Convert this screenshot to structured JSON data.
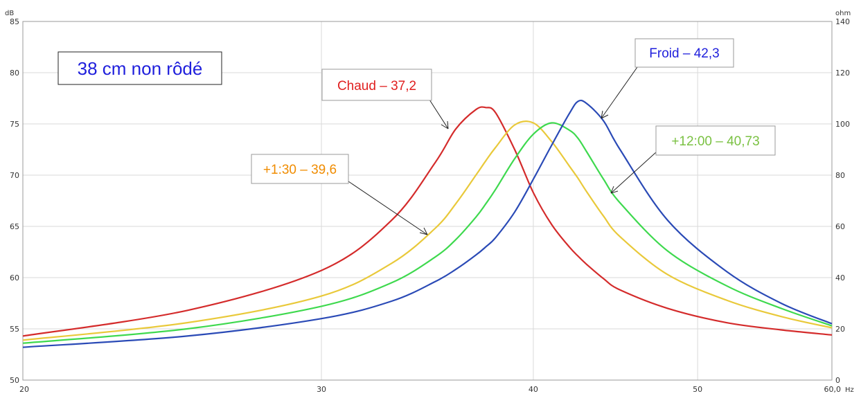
{
  "chart_data": {
    "type": "line",
    "xlabel": "",
    "x_unit": "Hz",
    "x_scale": "log",
    "xlim": [
      20,
      60
    ],
    "x_tick_labels": [
      "20",
      "30",
      "40",
      "50",
      "60,0"
    ],
    "x_tick_values": [
      20,
      30,
      40,
      50,
      60
    ],
    "left_axis": {
      "unit": "dB",
      "ylim": [
        50,
        85
      ],
      "ticks": [
        "50",
        "55",
        "60",
        "65",
        "70",
        "75",
        "80",
        "85"
      ]
    },
    "right_axis": {
      "unit": "ohm",
      "ylim": [
        0,
        140
      ],
      "ticks": [
        "0",
        "20",
        "40",
        "60",
        "80",
        "100",
        "120",
        "140"
      ]
    },
    "grid": true,
    "x": [
      20,
      25,
      30,
      33,
      35,
      36,
      37,
      37.5,
      38,
      39,
      40,
      41,
      42,
      42.5,
      43,
      44,
      45,
      48,
      52,
      56,
      60
    ],
    "series": [
      {
        "color": "#d42b2b",
        "values": [
          54.3,
          56.8,
          60.7,
          65.6,
          71.2,
          74.5,
          76.4,
          76.6,
          76.1,
          72.5,
          68.3,
          65.2,
          63.0,
          62.1,
          61.3,
          59.9,
          58.8,
          57.0,
          55.6,
          54.9,
          54.4
        ]
      },
      {
        "color": "#e9c93a",
        "values": [
          53.9,
          55.6,
          58.2,
          61.4,
          64.8,
          67.2,
          70.0,
          71.4,
          72.7,
          74.9,
          75.1,
          73.3,
          70.9,
          69.7,
          68.4,
          66.0,
          64.0,
          60.3,
          57.8,
          56.2,
          55.1
        ]
      },
      {
        "color": "#3ed94e",
        "values": [
          53.6,
          55.0,
          57.2,
          59.5,
          62.0,
          63.7,
          65.9,
          67.2,
          68.6,
          71.6,
          74.0,
          75.1,
          74.4,
          73.6,
          72.3,
          69.6,
          67.3,
          62.6,
          59.2,
          57.0,
          55.3
        ]
      },
      {
        "color": "#2a4ab6",
        "values": [
          53.2,
          54.3,
          56.0,
          57.7,
          59.6,
          60.8,
          62.2,
          63.0,
          63.9,
          66.4,
          69.6,
          72.9,
          76.0,
          77.2,
          77.0,
          75.3,
          72.5,
          65.6,
          60.6,
          57.5,
          55.5
        ]
      }
    ],
    "annotations": [
      {
        "text": "38 cm non rôdé",
        "color": "#1f1fdc"
      },
      {
        "text": "Chaud – 37,2",
        "color": "#e01f1f"
      },
      {
        "text": "Froid – 42,3",
        "color": "#1f1fdc"
      },
      {
        "text": "+1:30 – 39,6",
        "color": "#f08c00"
      },
      {
        "text": "+12:00 – 40,73",
        "color": "#7ac142"
      }
    ]
  }
}
